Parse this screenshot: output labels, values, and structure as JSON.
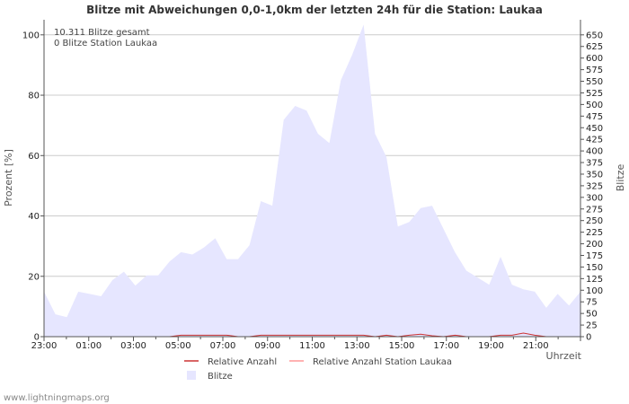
{
  "chart_data": {
    "type": "area",
    "title": "Blitze mit Abweichungen 0,0-1,0km der letzten 24h für die Station: Laukaa",
    "ylabel_left": "Prozent   [%]",
    "ylabel_right": "Blitze",
    "xlabel": "Uhrzeit",
    "y_left_lim": [
      0,
      105
    ],
    "y_left_ticks": [
      "0",
      "20",
      "40",
      "60",
      "80",
      "100"
    ],
    "y_right_lim": [
      0,
      682.5
    ],
    "y_right_ticks": [
      "0",
      "25",
      "50",
      "75",
      "100",
      "125",
      "150",
      "175",
      "200",
      "225",
      "250",
      "275",
      "300",
      "325",
      "350",
      "375",
      "400",
      "425",
      "450",
      "475",
      "500",
      "525",
      "550",
      "575",
      "600",
      "625",
      "650"
    ],
    "x_tick_labels": [
      "23:00",
      "01:00",
      "03:00",
      "05:00",
      "07:00",
      "09:00",
      "11:00",
      "13:00",
      "15:00",
      "17:00",
      "19:00",
      "21:00"
    ],
    "info_lines": [
      "10.311 Blitze gesamt",
      "0 Blitze Station Laukaa"
    ],
    "legend": [
      "Relative Anzahl",
      "Relative Anzahl Station Laukaa",
      "Blitze"
    ],
    "footer": "www.lightningmaps.org",
    "series": [
      {
        "name": "Blitze",
        "color": "#e6e6ff",
        "values": [
          97,
          48,
          42,
          97,
          92,
          87,
          122,
          140,
          110,
          132,
          132,
          162,
          182,
          177,
          192,
          212,
          167,
          167,
          197,
          292,
          282,
          467,
          497,
          487,
          437,
          417,
          552,
          607,
          672,
          437,
          387,
          237,
          247,
          277,
          282,
          232,
          182,
          142,
          127,
          112,
          172,
          112,
          102,
          97,
          62,
          92,
          67,
          97
        ]
      },
      {
        "name": "Relative Anzahl",
        "color": "#cc3333",
        "values": [
          0,
          0,
          0,
          0,
          0,
          0,
          0,
          0,
          0,
          0,
          0,
          0,
          0.5,
          0.5,
          0.5,
          0.5,
          0.5,
          0,
          0,
          0.5,
          0.5,
          0.5,
          0.5,
          0.5,
          0.5,
          0.5,
          0.5,
          0.5,
          0.5,
          0,
          0.5,
          0,
          0.5,
          0.8,
          0.3,
          0,
          0.5,
          0,
          0,
          0,
          0.5,
          0.5,
          1.2,
          0.5,
          0,
          0,
          0,
          0
        ]
      },
      {
        "name": "Relative Anzahl Station Laukaa",
        "color": "#ff9999",
        "values": [
          0,
          0,
          0,
          0,
          0,
          0,
          0,
          0,
          0,
          0,
          0,
          0,
          0,
          0,
          0,
          0,
          0,
          0,
          0,
          0,
          0,
          0,
          0,
          0,
          0,
          0,
          0,
          0,
          0,
          0,
          0,
          0,
          0,
          0,
          0,
          0,
          0,
          0,
          0,
          0,
          0,
          0,
          0,
          0,
          0,
          0,
          0,
          0
        ]
      }
    ]
  }
}
